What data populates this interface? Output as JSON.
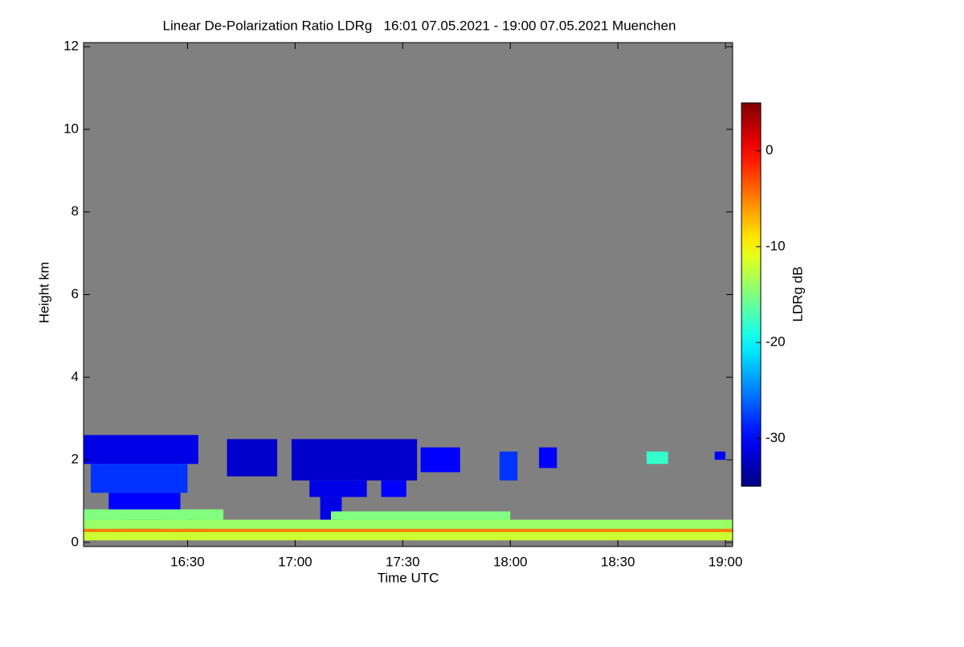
{
  "chart_data": {
    "type": "heatmap",
    "title": "Linear De-Polarization Ratio LDRg   16:01 07.05.2021 - 19:00 07.05.2021 Muenchen",
    "x_label": "Time UTC",
    "y_label": "Height km",
    "colorbar_label": "LDRg dB",
    "background_color": "#808080",
    "xlim": [
      961,
      1142
    ],
    "xticks": [
      {
        "value": 990,
        "label": "16:30"
      },
      {
        "value": 1020,
        "label": "17:00"
      },
      {
        "value": 1050,
        "label": "17:30"
      },
      {
        "value": 1080,
        "label": "18:00"
      },
      {
        "value": 1110,
        "label": "18:30"
      },
      {
        "value": 1140,
        "label": "19:00"
      }
    ],
    "ylim": [
      -0.1,
      12.1
    ],
    "yticks": [
      0,
      2,
      4,
      6,
      8,
      10,
      12
    ],
    "clim": [
      -35,
      5
    ],
    "cticks": [
      0,
      -10,
      -20,
      -30
    ],
    "cells": [
      {
        "x": [
          961,
          993
        ],
        "y": [
          1.9,
          2.6
        ],
        "value": -31
      },
      {
        "x": [
          963,
          990
        ],
        "y": [
          1.2,
          1.9
        ],
        "value": -28
      },
      {
        "x": [
          968,
          988
        ],
        "y": [
          0.6,
          1.2
        ],
        "value": -30
      },
      {
        "x": [
          972,
          983
        ],
        "y": [
          0.1,
          0.6
        ],
        "value": -32
      },
      {
        "x": [
          990,
          992
        ],
        "y": [
          0.1,
          0.6
        ],
        "value": -31
      },
      {
        "x": [
          1001,
          1015
        ],
        "y": [
          1.6,
          2.5
        ],
        "value": -32
      },
      {
        "x": [
          1019,
          1054
        ],
        "y": [
          1.5,
          2.5
        ],
        "value": -32
      },
      {
        "x": [
          1024,
          1040
        ],
        "y": [
          1.1,
          1.5
        ],
        "value": -31
      },
      {
        "x": [
          1027,
          1033
        ],
        "y": [
          0.5,
          1.1
        ],
        "value": -31
      },
      {
        "x": [
          1044,
          1051
        ],
        "y": [
          1.1,
          1.5
        ],
        "value": -30
      },
      {
        "x": [
          1055,
          1066
        ],
        "y": [
          1.7,
          2.3
        ],
        "value": -30
      },
      {
        "x": [
          1077,
          1082
        ],
        "y": [
          1.5,
          2.2
        ],
        "value": -28
      },
      {
        "x": [
          1088,
          1093
        ],
        "y": [
          1.8,
          2.3
        ],
        "value": -30
      },
      {
        "x": [
          1118,
          1124
        ],
        "y": [
          1.9,
          2.2
        ],
        "value": -18
      },
      {
        "x": [
          1137,
          1140
        ],
        "y": [
          2.0,
          2.2
        ],
        "value": -30
      },
      {
        "x": [
          961,
          1142
        ],
        "y": [
          0.05,
          0.25
        ],
        "value": -12
      },
      {
        "x": [
          961,
          1142
        ],
        "y": [
          0.25,
          0.33
        ],
        "value": -5
      },
      {
        "x": [
          961,
          1142
        ],
        "y": [
          0.33,
          0.55
        ],
        "value": -14
      },
      {
        "x": [
          961,
          1000
        ],
        "y": [
          0.55,
          0.8
        ],
        "value": -15
      },
      {
        "x": [
          1030,
          1080
        ],
        "y": [
          0.55,
          0.75
        ],
        "value": -15
      }
    ]
  }
}
